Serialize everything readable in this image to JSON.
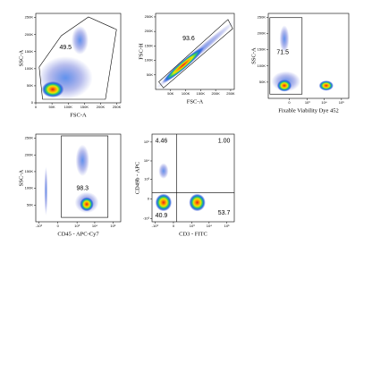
{
  "chart_data": [
    {
      "type": "scatter",
      "x_label": "FSC-A",
      "y_label": "SSC-A",
      "values": [
        49.5
      ],
      "xlim": [
        0,
        262144
      ],
      "ylim": [
        0,
        262144
      ],
      "xticks": [
        0,
        {
          "value": 50000,
          "label": "50K"
        },
        {
          "value": 100000,
          "label": "100K"
        },
        {
          "value": 150000,
          "label": "150K"
        },
        {
          "value": 200000,
          "label": "200K"
        },
        {
          "value": 250000,
          "label": "250K"
        }
      ],
      "yticks": [
        0,
        {
          "value": 50000,
          "label": "50K"
        },
        {
          "value": 100000,
          "label": "100K"
        },
        {
          "value": 150000,
          "label": "150K"
        },
        {
          "value": 200000,
          "label": "200K"
        },
        {
          "value": 250000,
          "label": "250K"
        }
      ]
    },
    {
      "type": "scatter",
      "x_label": "FSC-A",
      "y_label": "FSC-H",
      "values": [
        93.6
      ],
      "xlim": [
        0,
        262144
      ],
      "ylim": [
        0,
        262144
      ],
      "xticks": [
        {
          "value": 50000,
          "label": "50K"
        },
        {
          "value": 100000,
          "label": "100K"
        },
        {
          "value": 150000,
          "label": "150K"
        },
        {
          "value": 200000,
          "label": "200K"
        },
        {
          "value": 250000,
          "label": "250K"
        }
      ],
      "yticks": [
        {
          "value": 50000,
          "label": "50K"
        },
        {
          "value": 100000,
          "label": "100K"
        },
        {
          "value": 150000,
          "label": "150K"
        },
        {
          "value": 200000,
          "label": "200K"
        },
        {
          "value": 250000,
          "label": "250K"
        }
      ]
    },
    {
      "type": "scatter",
      "x_label": "Fixable Viability Dye 452",
      "y_label": "SSC-A",
      "values": [
        71.5
      ],
      "xscale": "biexponential",
      "xlim": [
        -1500,
        262144
      ],
      "ylim": [
        0,
        262144
      ],
      "xticks": [
        0,
        {
          "value": 1000,
          "label": "10³"
        },
        {
          "value": 10000,
          "label": "10⁴"
        },
        {
          "value": 100000,
          "label": "10⁵"
        }
      ],
      "yticks": [
        {
          "value": 50000,
          "label": "50K"
        },
        {
          "value": 100000,
          "label": "100K"
        },
        {
          "value": 150000,
          "label": "150K"
        },
        {
          "value": 200000,
          "label": "200K"
        },
        {
          "value": 250000,
          "label": "250K"
        }
      ]
    },
    {
      "type": "scatter",
      "x_label": "CD45 - APC-Cy7",
      "y_label": "SSC-A",
      "values": [
        98.3
      ],
      "xscale": "biexponential",
      "xlim": [
        -1500,
        262144
      ],
      "ylim": [
        0,
        262144
      ],
      "xticks": [
        {
          "value": -1000,
          "label": "-10³"
        },
        0,
        {
          "value": 1000,
          "label": "10³"
        },
        {
          "value": 10000,
          "label": "10⁴"
        },
        {
          "value": 100000,
          "label": "10⁵"
        }
      ],
      "yticks": [
        {
          "value": 50000,
          "label": "50K"
        },
        {
          "value": 100000,
          "label": "100K"
        },
        {
          "value": 150000,
          "label": "150K"
        },
        {
          "value": 200000,
          "label": "200K"
        },
        {
          "value": 250000,
          "label": "250K"
        }
      ]
    },
    {
      "type": "scatter",
      "x_label": "CD3 - FITC",
      "y_label": "CD49b - APC",
      "values": [
        4.46,
        1.0,
        40.9,
        53.7
      ],
      "value_labels": [
        "4.46",
        "1.00",
        "40.9",
        "53.7"
      ],
      "xscale": "biexponential",
      "yscale": "biexponential",
      "xlim": [
        -1500,
        262144
      ],
      "ylim": [
        -1500,
        262144
      ],
      "xticks": [
        {
          "value": -1000,
          "label": "-10³"
        },
        0,
        {
          "value": 1000,
          "label": "10³"
        },
        {
          "value": 10000,
          "label": "10⁴"
        },
        {
          "value": 100000,
          "label": "10⁵"
        }
      ],
      "yticks": [
        {
          "value": -1000,
          "label": "-10³"
        },
        0,
        {
          "value": 1000,
          "label": "10³"
        },
        {
          "value": 10000,
          "label": "10⁴"
        },
        {
          "value": 100000,
          "label": "10⁵"
        }
      ]
    }
  ]
}
